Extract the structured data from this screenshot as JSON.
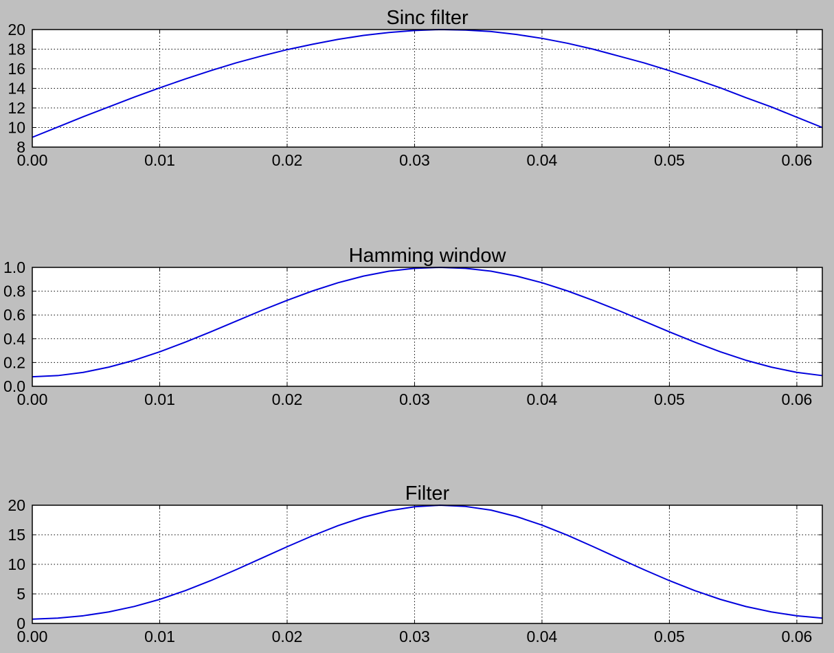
{
  "figure": {
    "background": "#bfbfbf",
    "line_color": "#0000dd"
  },
  "chart_data": [
    {
      "type": "line",
      "title": "Sinc filter",
      "xlabel": "",
      "ylabel": "",
      "xlim": [
        0.0,
        0.062
      ],
      "ylim": [
        8,
        20
      ],
      "x_ticks": [
        "0.00",
        "0.01",
        "0.02",
        "0.03",
        "0.04",
        "0.05",
        "0.06"
      ],
      "x_tick_values": [
        0.0,
        0.01,
        0.02,
        0.03,
        0.04,
        0.05,
        0.06
      ],
      "y_ticks": [
        "8",
        "10",
        "12",
        "14",
        "16",
        "18",
        "20"
      ],
      "y_tick_values": [
        8,
        10,
        12,
        14,
        16,
        18,
        20
      ],
      "grid": true,
      "series": [
        {
          "color": "#0000dd",
          "x": [
            0.0,
            0.002,
            0.004,
            0.006,
            0.008,
            0.01,
            0.012,
            0.014,
            0.016,
            0.018,
            0.02,
            0.022,
            0.024,
            0.026,
            0.028,
            0.03,
            0.032,
            0.034,
            0.036,
            0.038,
            0.04,
            0.042,
            0.044,
            0.046,
            0.048,
            0.05,
            0.052,
            0.054,
            0.056,
            0.058,
            0.06,
            0.062
          ],
          "y": [
            9.0,
            10.05,
            11.1,
            12.1,
            13.1,
            14.05,
            14.95,
            15.8,
            16.6,
            17.3,
            17.95,
            18.5,
            19.0,
            19.4,
            19.7,
            19.9,
            20.0,
            19.95,
            19.8,
            19.5,
            19.1,
            18.6,
            18.0,
            17.3,
            16.6,
            15.8,
            14.95,
            14.05,
            13.05,
            12.1,
            11.05,
            10.0
          ]
        }
      ]
    },
    {
      "type": "line",
      "title": "Hamming window",
      "xlabel": "",
      "ylabel": "",
      "xlim": [
        0.0,
        0.062
      ],
      "ylim": [
        0.0,
        1.0
      ],
      "x_ticks": [
        "0.00",
        "0.01",
        "0.02",
        "0.03",
        "0.04",
        "0.05",
        "0.06"
      ],
      "x_tick_values": [
        0.0,
        0.01,
        0.02,
        0.03,
        0.04,
        0.05,
        0.06
      ],
      "y_ticks": [
        "0.0",
        "0.2",
        "0.4",
        "0.6",
        "0.8",
        "1.0"
      ],
      "y_tick_values": [
        0.0,
        0.2,
        0.4,
        0.6,
        0.8,
        1.0
      ],
      "grid": true,
      "series": [
        {
          "color": "#0000dd",
          "x": [
            0.0,
            0.002,
            0.004,
            0.006,
            0.008,
            0.01,
            0.012,
            0.014,
            0.016,
            0.018,
            0.02,
            0.022,
            0.024,
            0.026,
            0.028,
            0.03,
            0.032,
            0.034,
            0.036,
            0.038,
            0.04,
            0.042,
            0.044,
            0.046,
            0.048,
            0.05,
            0.052,
            0.054,
            0.056,
            0.058,
            0.06,
            0.062
          ],
          "y": [
            0.08,
            0.09,
            0.117,
            0.161,
            0.219,
            0.29,
            0.371,
            0.458,
            0.548,
            0.638,
            0.723,
            0.802,
            0.871,
            0.927,
            0.968,
            0.992,
            1.0,
            0.992,
            0.968,
            0.927,
            0.871,
            0.802,
            0.723,
            0.638,
            0.548,
            0.458,
            0.371,
            0.29,
            0.219,
            0.161,
            0.117,
            0.09
          ]
        }
      ]
    },
    {
      "type": "line",
      "title": "Filter",
      "xlabel": "",
      "ylabel": "",
      "xlim": [
        0.0,
        0.062
      ],
      "ylim": [
        0,
        20
      ],
      "x_ticks": [
        "0.00",
        "0.01",
        "0.02",
        "0.03",
        "0.04",
        "0.05",
        "0.06"
      ],
      "x_tick_values": [
        0.0,
        0.01,
        0.02,
        0.03,
        0.04,
        0.05,
        0.06
      ],
      "y_ticks": [
        "0",
        "5",
        "10",
        "15",
        "20"
      ],
      "y_tick_values": [
        0,
        5,
        10,
        15,
        20
      ],
      "grid": true,
      "series": [
        {
          "color": "#0000dd",
          "x": [
            0.0,
            0.002,
            0.004,
            0.006,
            0.008,
            0.01,
            0.012,
            0.014,
            0.016,
            0.018,
            0.02,
            0.022,
            0.024,
            0.026,
            0.028,
            0.03,
            0.032,
            0.034,
            0.036,
            0.038,
            0.04,
            0.042,
            0.044,
            0.046,
            0.048,
            0.05,
            0.052,
            0.054,
            0.056,
            0.058,
            0.06,
            0.062
          ],
          "y": [
            0.72,
            0.9,
            1.3,
            1.95,
            2.87,
            4.07,
            5.55,
            7.24,
            9.1,
            11.04,
            12.98,
            14.84,
            16.55,
            17.98,
            19.07,
            19.74,
            20.0,
            19.79,
            19.17,
            18.08,
            16.64,
            14.92,
            13.01,
            11.04,
            9.1,
            7.24,
            5.55,
            4.07,
            2.86,
            1.95,
            1.29,
            0.9
          ]
        }
      ]
    }
  ]
}
